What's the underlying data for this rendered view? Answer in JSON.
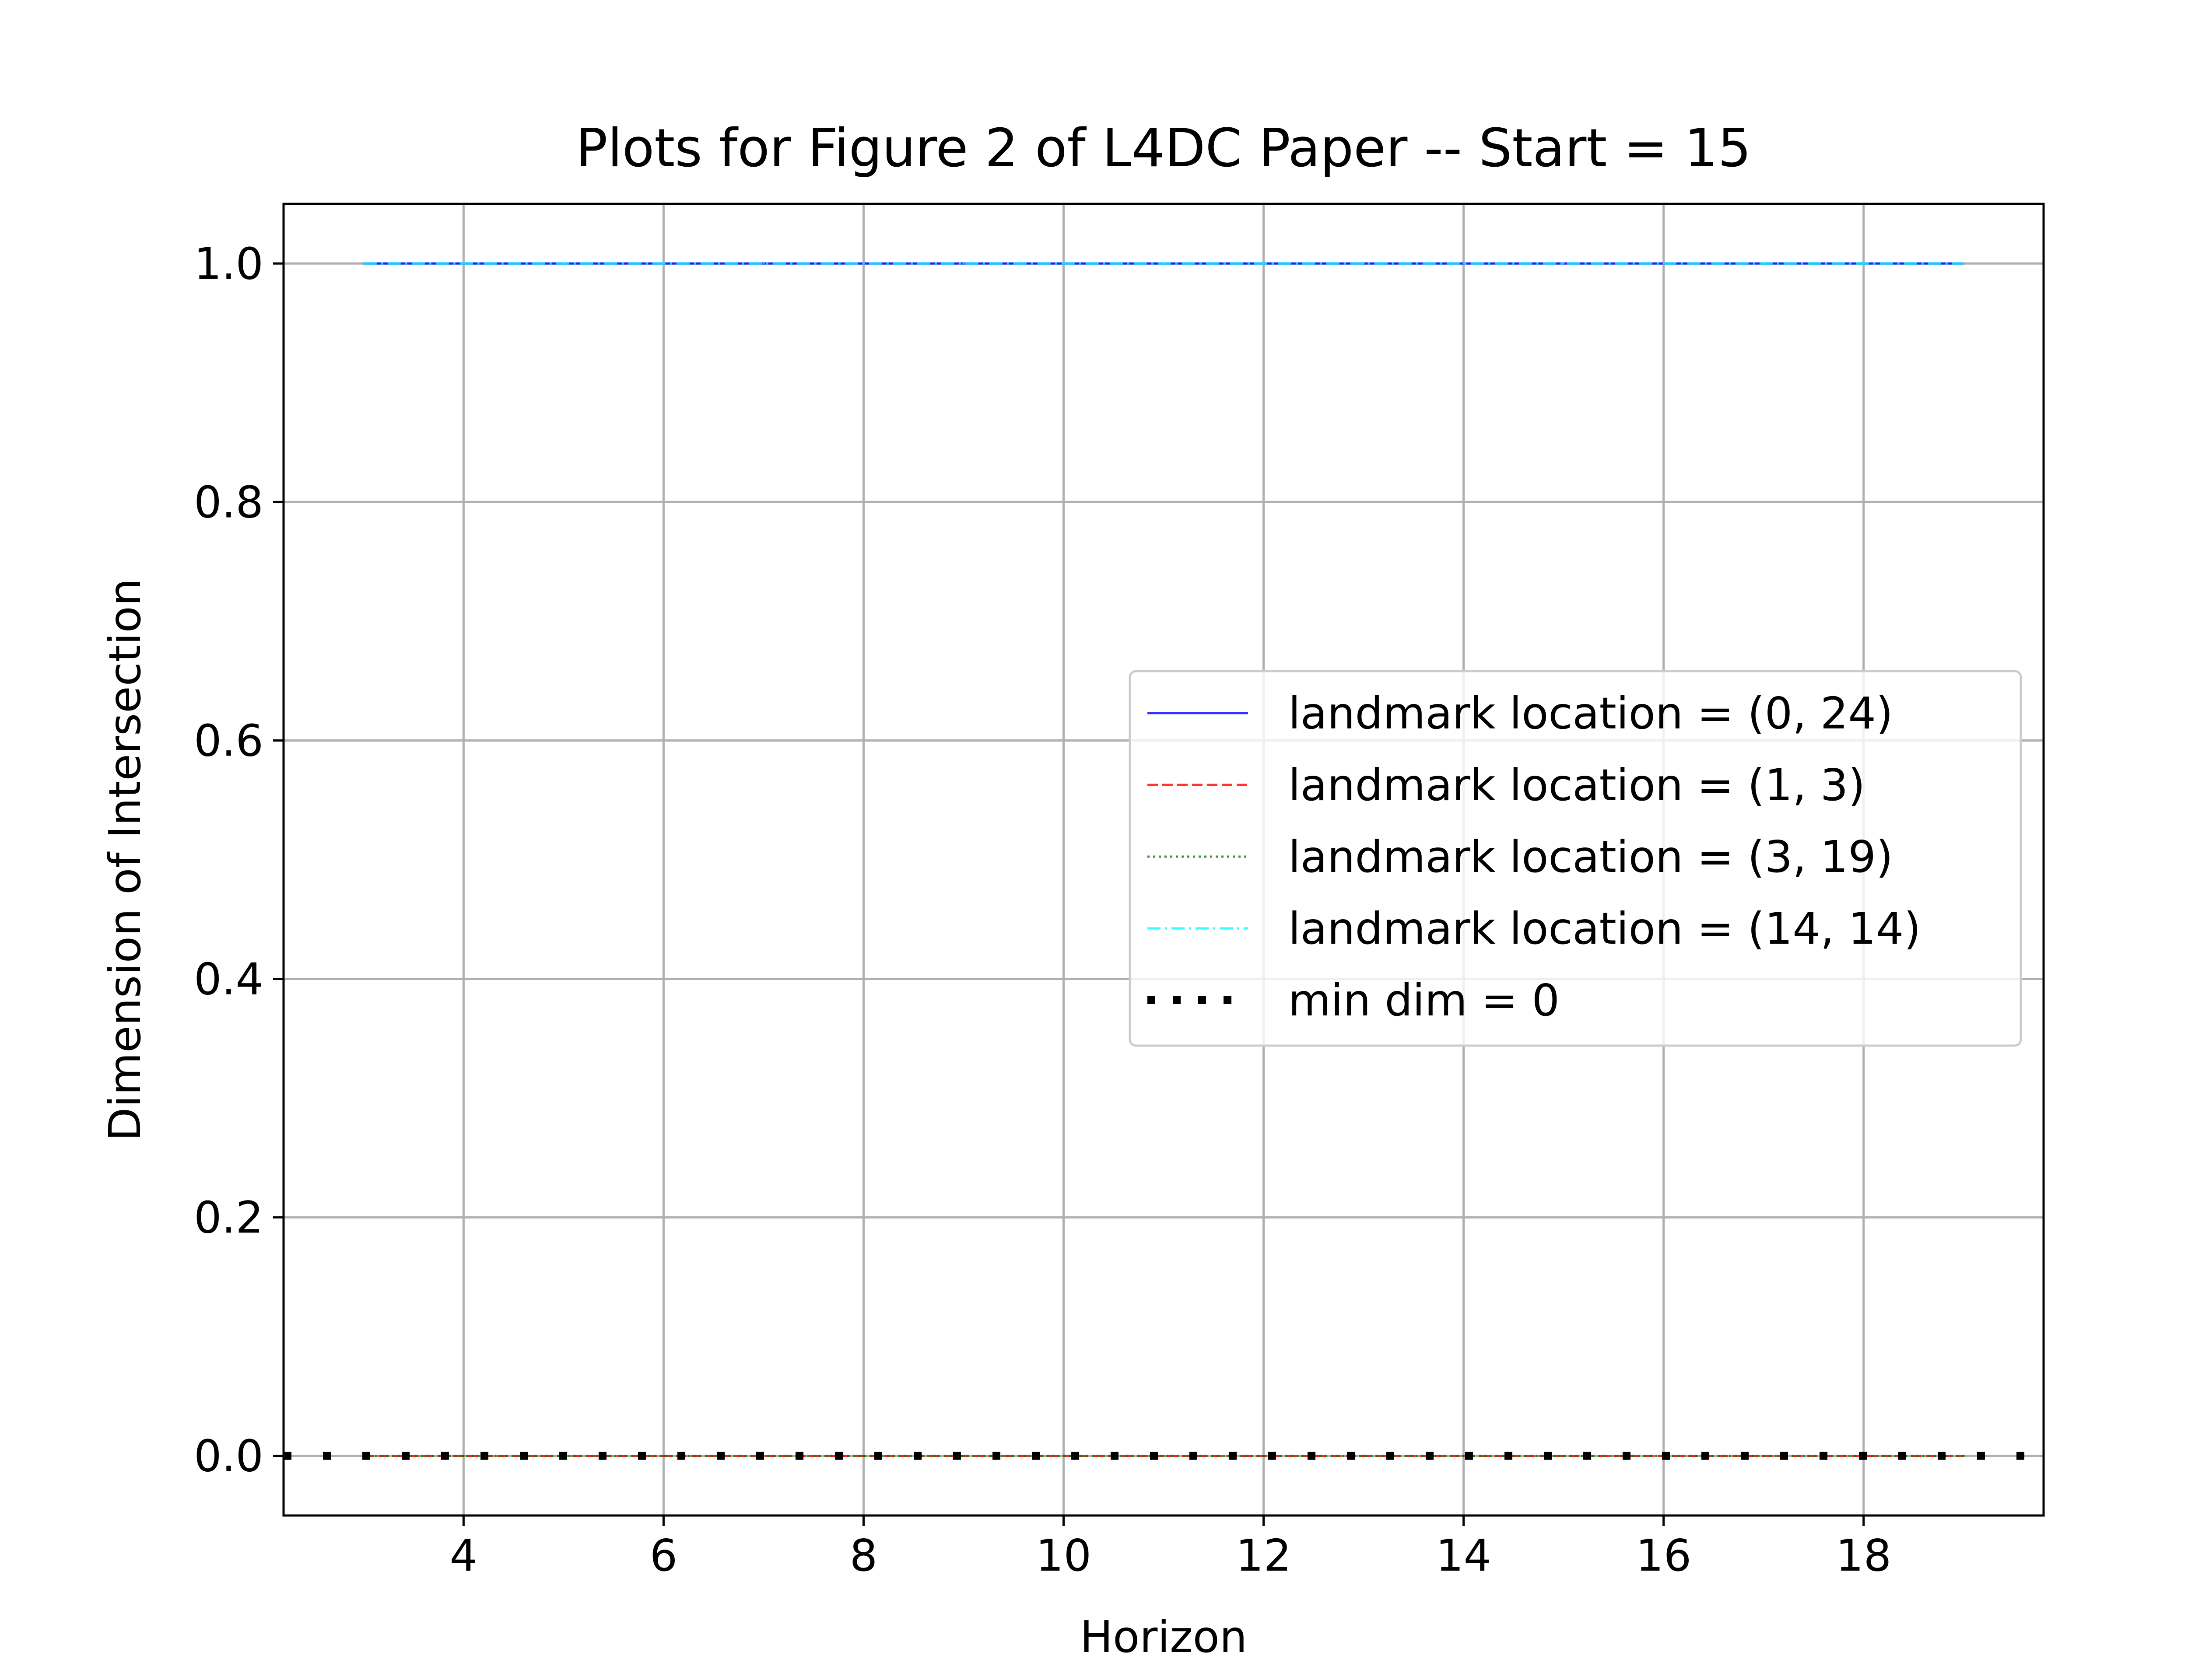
{
  "chart_data": {
    "type": "line",
    "title": "Plots for Figure 2 of L4DC Paper -- Start = 15",
    "xlabel": "Horizon",
    "ylabel": "Dimension of Intersection",
    "xlim": [
      2.2,
      19.8
    ],
    "ylim": [
      -0.05,
      1.05
    ],
    "x_ticks": [
      4,
      6,
      8,
      10,
      12,
      14,
      16,
      18
    ],
    "y_ticks": [
      0.0,
      0.2,
      0.4,
      0.6,
      0.8,
      1.0
    ],
    "x_tick_labels": [
      "4",
      "6",
      "8",
      "10",
      "12",
      "14",
      "16",
      "18"
    ],
    "y_tick_labels": [
      "0.0",
      "0.2",
      "0.4",
      "0.6",
      "0.8",
      "1.0"
    ],
    "grid": true,
    "legend_position": "center-right",
    "x": [
      3,
      4,
      5,
      6,
      7,
      8,
      9,
      10,
      11,
      12,
      13,
      14,
      15,
      16,
      17,
      18,
      19
    ],
    "series": [
      {
        "name": "landmark location = (0, 24)",
        "color": "#0000ff",
        "style": "solid",
        "values": [
          1,
          1,
          1,
          1,
          1,
          1,
          1,
          1,
          1,
          1,
          1,
          1,
          1,
          1,
          1,
          1,
          1
        ]
      },
      {
        "name": "landmark location = (1, 3)",
        "color": "#ff0000",
        "style": "dashed",
        "values": [
          0,
          0,
          0,
          0,
          0,
          0,
          0,
          0,
          0,
          0,
          0,
          0,
          0,
          0,
          0,
          0,
          0
        ]
      },
      {
        "name": "landmark location = (3, 19)",
        "color": "#008000",
        "style": "dotted",
        "values": [
          0,
          0,
          0,
          0,
          0,
          0,
          0,
          0,
          0,
          0,
          0,
          0,
          0,
          0,
          0,
          0,
          0
        ]
      },
      {
        "name": "landmark location = (14, 14)",
        "color": "#00ffff",
        "style": "dashdot",
        "values": [
          1,
          1,
          1,
          1,
          1,
          1,
          1,
          1,
          1,
          1,
          1,
          1,
          1,
          1,
          1,
          1,
          1
        ]
      }
    ],
    "reference_line": {
      "name": "min dim = 0",
      "y": 0,
      "color": "#000000",
      "style": "thick-dotted"
    }
  }
}
